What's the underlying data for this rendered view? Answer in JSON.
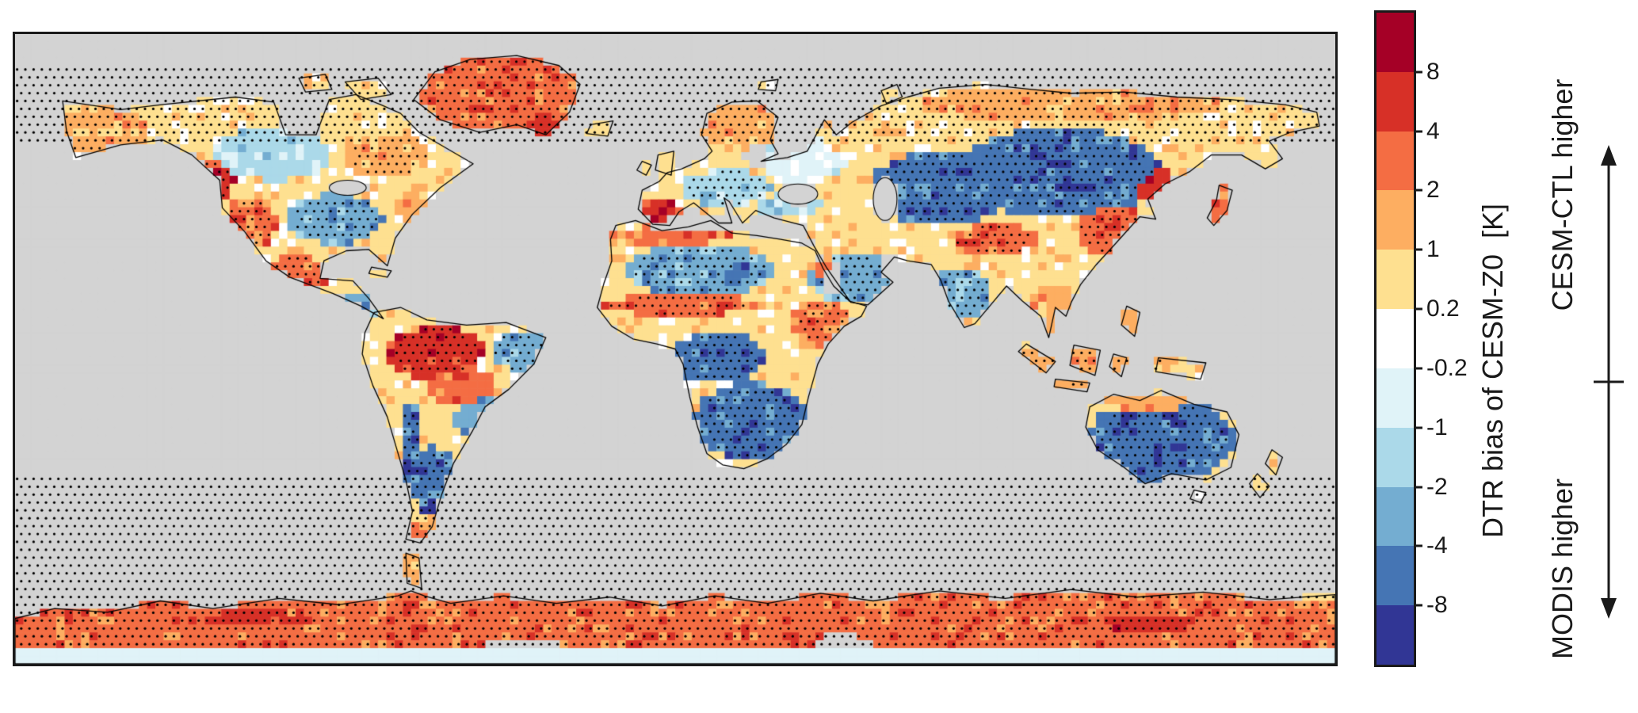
{
  "figure": {
    "background": "#ffffff"
  },
  "colorbar": {
    "label": "DTR bias of CESM-Z0  [K]",
    "upper_label": "CESM-CTL higher",
    "lower_label": "MODIS higher",
    "tick_labels": [
      "8",
      "4",
      "2",
      "1",
      "0.2",
      "-0.2",
      "-1",
      "-2",
      "-4",
      "-8"
    ],
    "colors": [
      "#a50026",
      "#d73027",
      "#f46d43",
      "#fdae61",
      "#fee090",
      "#ffffff",
      "#e0f3f8",
      "#abd9e9",
      "#74add1",
      "#4575b4",
      "#313695"
    ],
    "border_color": "#1a1a1a"
  },
  "map": {
    "ocean_color": "#d3d3d3",
    "coastline_color": "#000000",
    "border_color": "#1a1a1a",
    "stipple_color": "#000000"
  },
  "chart_data": {
    "type": "heatmap",
    "variable": "DTR bias of CESM-Z0",
    "units": "K",
    "projection": "global equirectangular world map",
    "colorbar_levels": [
      8,
      4,
      2,
      1,
      0.2,
      -0.2,
      -1,
      -2,
      -4,
      -8
    ],
    "colorbar_colors": [
      "#a50026",
      "#d73027",
      "#f46d43",
      "#fdae61",
      "#fee090",
      "#ffffff",
      "#e0f3f8",
      "#abd9e9",
      "#74add1",
      "#4575b4",
      "#313695"
    ],
    "positive_meaning": "CESM-CTL higher",
    "negative_meaning": "MODIS higher",
    "regions": [
      {
        "id": "alaska",
        "name": "Alaska",
        "bias_k": "+1 to +2",
        "color_index": 3,
        "stipple": true
      },
      {
        "id": "pacific-northwest",
        "name": "Pacific Northwest",
        "bias_k": "+4 to +8",
        "color_index": 1,
        "stipple": true
      },
      {
        "id": "western-us",
        "name": "Western United States",
        "bias_k": "+2 to +4",
        "color_index": 2,
        "stipple": true
      },
      {
        "id": "canada-plains",
        "name": "Western and central Canada",
        "bias_k": "-1 to -2",
        "color_index": 7,
        "stipple": false
      },
      {
        "id": "canada-east",
        "name": "Eastern Canada",
        "bias_k": "+1 to +2",
        "color_index": 3,
        "stipple": true
      },
      {
        "id": "us-central-east",
        "name": "Central and eastern United States",
        "bias_k": "-2 to -4",
        "color_index": 8,
        "stipple": true
      },
      {
        "id": "us-east-coast",
        "name": "US Atlantic coast",
        "bias_k": "+1 to +2",
        "color_index": 3,
        "stipple": false
      },
      {
        "id": "mexico",
        "name": "Mexico",
        "bias_k": "+2 to +4",
        "color_index": 2,
        "stipple": true
      },
      {
        "id": "central-america",
        "name": "Central America",
        "bias_k": "-2 to -4",
        "color_index": 8,
        "stipple": false
      },
      {
        "id": "greenland",
        "name": "Greenland",
        "bias_k": "+2 to +4",
        "color_index": 2,
        "stipple": true
      },
      {
        "id": "greenland-south",
        "name": "Southern Greenland",
        "bias_k": "+4 to +8",
        "color_index": 1,
        "stipple": false
      },
      {
        "id": "colombia-venezuela",
        "name": "Colombia and Venezuela",
        "bias_k": "+0.2 to +1",
        "color_index": 4,
        "stipple": false
      },
      {
        "id": "amazon",
        "name": "Amazon basin",
        "bias_k": "+4 to +8",
        "color_index": 1,
        "stipple": true
      },
      {
        "id": "amazon-south",
        "name": "Southern Amazon / Brazil interior",
        "bias_k": "+2 to +4",
        "color_index": 2,
        "stipple": false
      },
      {
        "id": "brazil-east",
        "name": "Eastern Brazil",
        "bias_k": "-2 to -4",
        "color_index": 8,
        "stipple": true
      },
      {
        "id": "brazil-south",
        "name": "Southeastern South America",
        "bias_k": "-2 to -4",
        "color_index": 8,
        "stipple": false
      },
      {
        "id": "andes",
        "name": "Andes",
        "bias_k": "-4 to -8",
        "color_index": 9,
        "stipple": true
      },
      {
        "id": "argentina",
        "name": "Argentina / Patagonia",
        "bias_k": "-4 to -8",
        "color_index": 9,
        "stipple": true
      },
      {
        "id": "patagonia-tip",
        "name": "Southern Patagonia",
        "bias_k": "+2 to +4",
        "color_index": 2,
        "stipple": false
      },
      {
        "id": "scandinavia",
        "name": "Scandinavia",
        "bias_k": "+1 to +2",
        "color_index": 3,
        "stipple": true
      },
      {
        "id": "europe-central",
        "name": "Central Europe",
        "bias_k": "-1 to -2",
        "color_index": 7,
        "stipple": true
      },
      {
        "id": "iberia",
        "name": "Iberian Peninsula",
        "bias_k": "+4 to +8",
        "color_index": 1,
        "stipple": false
      },
      {
        "id": "europe-east",
        "name": "Eastern Europe",
        "bias_k": "-0.2 to -1",
        "color_index": 6,
        "stipple": false
      },
      {
        "id": "russia-west",
        "name": "Western Russia",
        "bias_k": "+0.2 to +1",
        "color_index": 4,
        "stipple": false
      },
      {
        "id": "siberia-arctic",
        "name": "Arctic Siberian coast",
        "bias_k": "+1 to +2",
        "color_index": 3,
        "stipple": true
      },
      {
        "id": "central-asia",
        "name": "Central Asia",
        "bias_k": "-4 to -8",
        "color_index": 9,
        "stipple": true
      },
      {
        "id": "siberia",
        "name": "Siberia / Mongolia",
        "bias_k": "-4 to -8",
        "color_index": 9,
        "stipple": true
      },
      {
        "id": "mongolia-core",
        "name": "Mongolia and Lake Baikal region",
        "bias_k": "< -8",
        "color_index": 10,
        "stipple": true
      },
      {
        "id": "tibet",
        "name": "Tibetan Plateau margin",
        "bias_k": "+2 to +4",
        "color_index": 2,
        "stipple": true
      },
      {
        "id": "india",
        "name": "India",
        "bias_k": "-2 to -4",
        "color_index": 8,
        "stipple": true
      },
      {
        "id": "india-west-coast",
        "name": "Western Ghats coast",
        "bias_k": "+4 to +8",
        "color_index": 1,
        "stipple": false
      },
      {
        "id": "china-east",
        "name": "Eastern China",
        "bias_k": "+2 to +4",
        "color_index": 2,
        "stipple": true
      },
      {
        "id": "china-northeast",
        "name": "Northeast China",
        "bias_k": "+4 to +8",
        "color_index": 1,
        "stipple": false
      },
      {
        "id": "sahara",
        "name": "Sahara interior",
        "bias_k": "-2 to -4",
        "color_index": 8,
        "stipple": true
      },
      {
        "id": "sahara-core",
        "name": "Central Sahara",
        "bias_k": "-4 to -8",
        "color_index": 9,
        "stipple": false
      },
      {
        "id": "maghreb",
        "name": "Mediterranean North Africa",
        "bias_k": "+2 to +4",
        "color_index": 2,
        "stipple": false
      },
      {
        "id": "sahel",
        "name": "Sahel",
        "bias_k": "+2 to +4",
        "color_index": 2,
        "stipple": true
      },
      {
        "id": "congo",
        "name": "Congo basin",
        "bias_k": "-4 to -8",
        "color_index": 9,
        "stipple": true
      },
      {
        "id": "horn-of-africa",
        "name": "Horn of Africa / Ethiopia",
        "bias_k": "+2 to +4",
        "color_index": 2,
        "stipple": true
      },
      {
        "id": "southern-africa",
        "name": "Southern Africa",
        "bias_k": "-4 to -8",
        "color_index": 9,
        "stipple": true
      },
      {
        "id": "madagascar",
        "name": "Madagascar",
        "bias_k": "-4 to -8",
        "color_index": 9,
        "stipple": false
      },
      {
        "id": "arabia",
        "name": "Arabian Peninsula",
        "bias_k": "-2 to -4",
        "color_index": 8,
        "stipple": true
      },
      {
        "id": "arabia-red-sea",
        "name": "Red Sea coast of Arabia",
        "bias_k": "+2 to +4",
        "color_index": 2,
        "stipple": false
      },
      {
        "id": "anatolia",
        "name": "Anatolia / Caucasus",
        "bias_k": "-1 to -2",
        "color_index": 7,
        "stipple": false
      },
      {
        "id": "se-asia",
        "name": "Mainland Southeast Asia",
        "bias_k": "+1 to +2",
        "color_index": 3,
        "stipple": false
      },
      {
        "id": "indonesia",
        "name": "Maritime Continent",
        "bias_k": "+1 to +2",
        "color_index": 3,
        "stipple": true
      },
      {
        "id": "philippines",
        "name": "Philippines",
        "bias_k": "+1 to +2",
        "color_index": 3,
        "stipple": false
      },
      {
        "id": "japan",
        "name": "Japan",
        "bias_k": "+2 to +4",
        "color_index": 2,
        "stipple": false
      },
      {
        "id": "australia",
        "name": "Australian interior",
        "bias_k": "-4 to -8",
        "color_index": 9,
        "stipple": true
      },
      {
        "id": "australia-core",
        "name": "Central Australia",
        "bias_k": "< -8",
        "color_index": 10,
        "stipple": false
      },
      {
        "id": "australia-north",
        "name": "Northern Australia coast",
        "bias_k": "+1 to +2",
        "color_index": 3,
        "stipple": false
      },
      {
        "id": "new-zealand",
        "name": "New Zealand",
        "bias_k": "+0.2 to +1",
        "color_index": 4,
        "stipple": false
      },
      {
        "id": "antarctica",
        "name": "Antarctica coastal band",
        "bias_k": "+2 to +4",
        "color_index": 2,
        "stipple": true
      },
      {
        "id": "antarctica-west",
        "name": "West Antarctica sector",
        "bias_k": "+4 to +8",
        "color_index": 1,
        "stipple": false
      },
      {
        "id": "antarctica-east",
        "name": "East Antarctica sector",
        "bias_k": "+4 to +8",
        "color_index": 1,
        "stipple": false
      },
      {
        "id": "antarctica-nodata-1",
        "name": "Antarctica interior (no data)",
        "bias_k": "no data",
        "color_index": null,
        "stipple": false
      },
      {
        "id": "antarctica-nodata-2",
        "name": "Antarctica interior (no data)",
        "bias_k": "no data",
        "color_index": null,
        "stipple": false
      },
      {
        "id": "antarctic-peninsula",
        "name": "Antarctic Peninsula",
        "bias_k": "+1 to +2",
        "color_index": 3,
        "stipple": false
      },
      {
        "id": "southern-strip",
        "name": "Southernmost grid row",
        "bias_k": "-0.2 to -1",
        "color_index": 6,
        "stipple": false
      }
    ]
  }
}
